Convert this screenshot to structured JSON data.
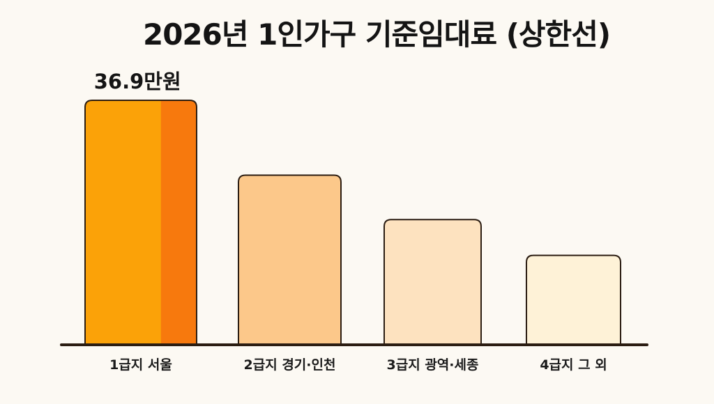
{
  "chart_data": {
    "type": "bar",
    "title": "2026년 1인가구 기준임대료 (상한선)",
    "categories": [
      "1급지 서울",
      "2급지 경기·인천",
      "3급지 광역·세종",
      "4급지 그 외"
    ],
    "values": [
      36.9,
      25.6,
      18.9,
      13.5
    ],
    "data_labels": [
      "36.9만원",
      "",
      "",
      ""
    ],
    "xlabel": "",
    "ylabel": "",
    "grid": false,
    "colors": [
      "#fba208",
      "#fcc88a",
      "#fde2bf",
      "#fef2d7"
    ],
    "highlight_color": "#f7790d",
    "outline_color": "#2b1d12"
  }
}
